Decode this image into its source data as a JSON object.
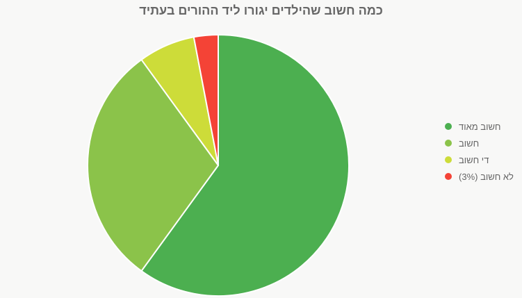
{
  "chart_data": {
    "type": "pie",
    "title": "כמה חשוב שהילדים יגורו ליד ההורים בעתיד",
    "categories": [
      "חשוב מאוד",
      "חשוב",
      "די חשוב",
      "לא חשוב (3%)"
    ],
    "values": [
      60,
      30,
      7,
      3
    ],
    "colors": [
      "#4caf50",
      "#8bc34a",
      "#cddc39",
      "#f44336"
    ],
    "legend_position": "right"
  }
}
